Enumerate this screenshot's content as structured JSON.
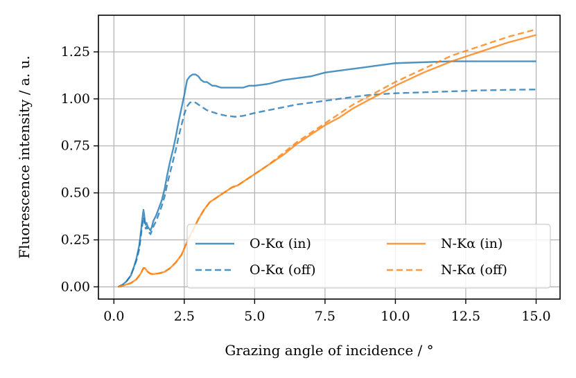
{
  "chart_data": {
    "type": "line",
    "title": "",
    "xlabel": "Grazing angle of incidence / °",
    "ylabel": "Fluorescence intensity / a. u.",
    "xlim": [
      -0.55,
      15.85
    ],
    "ylim": [
      -0.065,
      1.445
    ],
    "xticks": [
      0.0,
      2.5,
      5.0,
      7.5,
      10.0,
      12.5,
      15.0
    ],
    "xtick_labels": [
      "0.0",
      "2.5",
      "5.0",
      "7.5",
      "10.0",
      "12.5",
      "15.0"
    ],
    "yticks": [
      0.0,
      0.25,
      0.5,
      0.75,
      1.0,
      1.25
    ],
    "ytick_labels": [
      "0.00",
      "0.25",
      "0.50",
      "0.75",
      "1.00",
      "1.25"
    ],
    "grid": true,
    "legend_position": "lower-right",
    "legend": [
      "O-Kα (in)",
      "O-Kα (off)",
      "N-Kα (in)",
      "N-Kα (off)"
    ],
    "colors": {
      "blue": "#1f77b4",
      "orange": "#ff7f0e",
      "grid": "#b0b0b0"
    },
    "series": [
      {
        "name": "O-Kα (in)",
        "color": "#1f77b4",
        "dash": "solid",
        "x": [
          0.15,
          0.3,
          0.45,
          0.6,
          0.7,
          0.8,
          0.9,
          0.95,
          1.0,
          1.05,
          1.08,
          1.1,
          1.13,
          1.16,
          1.2,
          1.25,
          1.3,
          1.35,
          1.4,
          1.5,
          1.6,
          1.7,
          1.8,
          1.9,
          2.0,
          2.1,
          2.2,
          2.3,
          2.4,
          2.5,
          2.6,
          2.7,
          2.8,
          2.9,
          3.0,
          3.1,
          3.2,
          3.3,
          3.4,
          3.5,
          3.6,
          3.8,
          4.0,
          4.2,
          4.4,
          4.6,
          4.8,
          5.0,
          5.5,
          6.0,
          6.5,
          7.0,
          7.5,
          8.0,
          8.5,
          9.0,
          9.5,
          10.0,
          11.0,
          12.0,
          13.0,
          14.0,
          15.0
        ],
        "y": [
          0.0,
          0.01,
          0.03,
          0.06,
          0.1,
          0.15,
          0.22,
          0.28,
          0.35,
          0.41,
          0.38,
          0.35,
          0.33,
          0.34,
          0.32,
          0.31,
          0.3,
          0.32,
          0.35,
          0.38,
          0.42,
          0.46,
          0.52,
          0.6,
          0.67,
          0.73,
          0.8,
          0.88,
          0.95,
          1.02,
          1.1,
          1.12,
          1.13,
          1.13,
          1.12,
          1.1,
          1.09,
          1.09,
          1.08,
          1.07,
          1.07,
          1.06,
          1.06,
          1.06,
          1.06,
          1.06,
          1.07,
          1.07,
          1.08,
          1.1,
          1.11,
          1.12,
          1.14,
          1.15,
          1.16,
          1.17,
          1.18,
          1.19,
          1.195,
          1.2,
          1.2,
          1.2,
          1.2
        ]
      },
      {
        "name": "O-Kα (off)",
        "color": "#1f77b4",
        "dash": "dashed",
        "x": [
          0.15,
          0.3,
          0.45,
          0.6,
          0.7,
          0.8,
          0.9,
          0.95,
          1.0,
          1.05,
          1.08,
          1.1,
          1.13,
          1.16,
          1.2,
          1.25,
          1.3,
          1.35,
          1.4,
          1.5,
          1.6,
          1.7,
          1.8,
          1.9,
          2.0,
          2.1,
          2.2,
          2.3,
          2.4,
          2.5,
          2.6,
          2.7,
          2.8,
          2.9,
          3.0,
          3.1,
          3.2,
          3.3,
          3.5,
          3.7,
          4.0,
          4.3,
          4.6,
          5.0,
          5.5,
          6.0,
          6.5,
          7.0,
          7.5,
          8.0,
          8.5,
          9.0,
          9.5,
          10.0,
          11.0,
          12.0,
          13.0,
          14.0,
          15.0
        ],
        "y": [
          0.0,
          0.01,
          0.03,
          0.06,
          0.1,
          0.14,
          0.2,
          0.26,
          0.32,
          0.37,
          0.35,
          0.33,
          0.31,
          0.32,
          0.3,
          0.29,
          0.28,
          0.3,
          0.32,
          0.35,
          0.39,
          0.43,
          0.48,
          0.55,
          0.61,
          0.67,
          0.73,
          0.8,
          0.86,
          0.92,
          0.96,
          0.98,
          0.985,
          0.98,
          0.97,
          0.96,
          0.95,
          0.94,
          0.93,
          0.92,
          0.91,
          0.905,
          0.91,
          0.925,
          0.94,
          0.955,
          0.97,
          0.98,
          0.99,
          1.0,
          1.01,
          1.02,
          1.025,
          1.03,
          1.035,
          1.04,
          1.045,
          1.048,
          1.05
        ]
      },
      {
        "name": "N-Kα (in)",
        "color": "#ff7f0e",
        "dash": "solid",
        "x": [
          0.15,
          0.4,
          0.6,
          0.8,
          0.95,
          1.05,
          1.1,
          1.15,
          1.2,
          1.3,
          1.4,
          1.5,
          1.6,
          1.8,
          2.0,
          2.2,
          2.4,
          2.6,
          2.8,
          3.0,
          3.2,
          3.4,
          3.6,
          3.8,
          4.0,
          4.2,
          4.4,
          4.6,
          4.8,
          5.0,
          5.5,
          6.0,
          6.5,
          7.0,
          7.5,
          8.0,
          8.5,
          9.0,
          9.5,
          10.0,
          11.0,
          12.0,
          13.0,
          14.0,
          15.0
        ],
        "y": [
          0.0,
          0.01,
          0.02,
          0.04,
          0.07,
          0.1,
          0.1,
          0.09,
          0.08,
          0.07,
          0.068,
          0.07,
          0.072,
          0.08,
          0.1,
          0.13,
          0.17,
          0.24,
          0.3,
          0.36,
          0.41,
          0.45,
          0.47,
          0.49,
          0.51,
          0.53,
          0.54,
          0.56,
          0.58,
          0.6,
          0.65,
          0.7,
          0.76,
          0.81,
          0.86,
          0.9,
          0.95,
          0.99,
          1.03,
          1.07,
          1.14,
          1.2,
          1.25,
          1.3,
          1.34
        ]
      },
      {
        "name": "N-Kα (off)",
        "color": "#ff7f0e",
        "dash": "dashed",
        "x": [
          0.15,
          0.4,
          0.6,
          0.8,
          0.95,
          1.05,
          1.1,
          1.15,
          1.2,
          1.3,
          1.4,
          1.5,
          1.6,
          1.8,
          2.0,
          2.2,
          2.4,
          2.6,
          2.8,
          3.0,
          3.2,
          3.4,
          3.6,
          3.8,
          4.0,
          4.2,
          4.4,
          4.6,
          4.8,
          5.0,
          5.5,
          6.0,
          6.5,
          7.0,
          7.5,
          8.0,
          8.5,
          9.0,
          9.5,
          10.0,
          11.0,
          12.0,
          13.0,
          14.0,
          15.0
        ],
        "y": [
          0.0,
          0.01,
          0.02,
          0.04,
          0.07,
          0.1,
          0.1,
          0.09,
          0.08,
          0.07,
          0.068,
          0.07,
          0.072,
          0.08,
          0.1,
          0.13,
          0.17,
          0.24,
          0.3,
          0.36,
          0.41,
          0.45,
          0.47,
          0.49,
          0.51,
          0.53,
          0.54,
          0.56,
          0.58,
          0.6,
          0.65,
          0.71,
          0.77,
          0.82,
          0.87,
          0.92,
          0.97,
          1.01,
          1.05,
          1.09,
          1.16,
          1.23,
          1.28,
          1.33,
          1.37
        ]
      }
    ]
  }
}
